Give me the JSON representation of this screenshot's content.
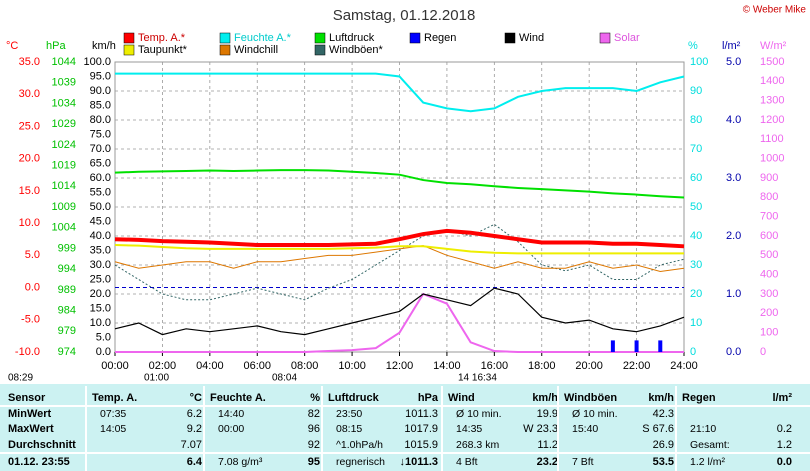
{
  "chart_data": {
    "type": "line",
    "title": "Samstag, 01.12.2018",
    "copyright": "© Weber Mike",
    "x": [
      0,
      1,
      2,
      3,
      4,
      5,
      6,
      7,
      8,
      9,
      10,
      11,
      12,
      13,
      14,
      15,
      16,
      17,
      18,
      19,
      20,
      21,
      22,
      23,
      24
    ],
    "xlim": [
      0,
      24
    ],
    "xticks": [
      {
        "value": 0,
        "label": "00:00"
      },
      {
        "value": 2,
        "label": "02:00"
      },
      {
        "value": 4,
        "label": "04:00"
      },
      {
        "value": 6,
        "label": "06:00"
      },
      {
        "value": 8,
        "label": "08:00"
      },
      {
        "value": 10,
        "label": "10:00"
      },
      {
        "value": 12,
        "label": "12:00"
      },
      {
        "value": 14,
        "label": "14:00"
      },
      {
        "value": 16,
        "label": "16:00"
      },
      {
        "value": 18,
        "label": "18:00"
      },
      {
        "value": 20,
        "label": "20:00"
      },
      {
        "value": 22,
        "label": "22:00"
      },
      {
        "value": 24,
        "label": "24:00"
      }
    ],
    "grid": true,
    "axes": {
      "temp": {
        "label": "°C",
        "color": "#ff0000",
        "lim": [
          -10,
          35
        ],
        "ticks": [
          {
            "value": -10,
            "label": "-10.0"
          },
          {
            "value": -5,
            "label": "-5.0"
          },
          {
            "value": 0,
            "label": "0.0"
          },
          {
            "value": 5,
            "label": "5.0"
          },
          {
            "value": 10,
            "label": "10.0"
          },
          {
            "value": 15,
            "label": "15.0"
          },
          {
            "value": 20,
            "label": "20.0"
          },
          {
            "value": 25,
            "label": "25.0"
          },
          {
            "value": 30,
            "label": "30.0"
          },
          {
            "value": 35,
            "label": "35.0"
          }
        ]
      },
      "hpa": {
        "label": "hPa",
        "color": "#00c000",
        "lim": [
          974,
          1044
        ],
        "ticks": [
          974,
          979,
          984,
          989,
          994,
          999,
          1004,
          1009,
          1014,
          1019,
          1024,
          1029,
          1034,
          1039,
          1044
        ]
      },
      "kmh": {
        "label": "km/h",
        "color": "#000000",
        "lim": [
          0,
          100
        ],
        "ticks": [
          {
            "value": 0,
            "label": "0.0"
          },
          {
            "value": 5,
            "label": "5.0"
          },
          {
            "value": 10,
            "label": "10.0"
          },
          {
            "value": 15,
            "label": "15.0"
          },
          {
            "value": 20,
            "label": "20.0"
          },
          {
            "value": 25,
            "label": "25.0"
          },
          {
            "value": 30,
            "label": "30.0"
          },
          {
            "value": 35,
            "label": "35.0"
          },
          {
            "value": 40,
            "label": "40.0"
          },
          {
            "value": 45,
            "label": "45.0"
          },
          {
            "value": 50,
            "label": "50.0"
          },
          {
            "value": 55,
            "label": "55.0"
          },
          {
            "value": 60,
            "label": "60.0"
          },
          {
            "value": 65,
            "label": "65.0"
          },
          {
            "value": 70,
            "label": "70.0"
          },
          {
            "value": 75,
            "label": "75.0"
          },
          {
            "value": 80,
            "label": "80.0"
          },
          {
            "value": 85,
            "label": "85.0"
          },
          {
            "value": 90,
            "label": "90.0"
          },
          {
            "value": 95,
            "label": "95.0"
          },
          {
            "value": 100,
            "label": "100.0"
          }
        ]
      },
      "pct": {
        "label": "%",
        "color": "#00dddd",
        "lim": [
          0,
          100
        ],
        "ticks": [
          0,
          10,
          20,
          30,
          40,
          50,
          60,
          70,
          80,
          90,
          100
        ]
      },
      "rain": {
        "label": "l/m²",
        "color": "#0000aa",
        "lim": [
          0,
          5
        ],
        "ticks": [
          {
            "value": 0,
            "label": "0.0"
          },
          {
            "value": 1,
            "label": "1.0"
          },
          {
            "value": 2,
            "label": "2.0"
          },
          {
            "value": 3,
            "label": "3.0"
          },
          {
            "value": 4,
            "label": "4.0"
          },
          {
            "value": 5,
            "label": "5.0"
          }
        ]
      },
      "solar": {
        "label": "W/m²",
        "color": "#ee66ee",
        "lim": [
          0,
          1500
        ],
        "ticks": [
          0,
          100,
          200,
          300,
          400,
          500,
          600,
          700,
          800,
          900,
          1000,
          1100,
          1200,
          1300,
          1400,
          1500
        ]
      }
    },
    "series": [
      {
        "name": "Temp. A.*",
        "color": "#ff0000",
        "axis": "temp",
        "width": 4,
        "values": [
          7.5,
          7.4,
          7.2,
          7.1,
          7.0,
          6.8,
          6.6,
          6.6,
          6.6,
          6.6,
          6.7,
          6.8,
          7.5,
          8.3,
          8.8,
          8.5,
          8.0,
          7.5,
          7.0,
          7.0,
          7.0,
          6.8,
          6.8,
          6.6,
          6.4
        ]
      },
      {
        "name": "Feuchte A.*",
        "color": "#00eeee",
        "axis": "pct",
        "width": 2,
        "values": [
          96,
          96,
          96,
          96,
          96,
          96,
          96,
          96,
          96,
          96,
          96,
          96,
          95,
          86,
          84,
          83,
          84,
          88,
          90,
          91,
          91,
          91,
          90,
          93,
          95
        ]
      },
      {
        "name": "Luftdruck",
        "color": "#00e000",
        "axis": "hpa",
        "width": 2,
        "values": [
          1017.3,
          1017.5,
          1017.6,
          1017.7,
          1017.8,
          1017.7,
          1017.8,
          1017.9,
          1017.9,
          1017.8,
          1017.5,
          1017.2,
          1016.8,
          1015.5,
          1014.8,
          1014.5,
          1014.0,
          1013.6,
          1013.3,
          1013.0,
          1012.7,
          1012.3,
          1012.0,
          1011.6,
          1011.3
        ]
      },
      {
        "name": "Regen",
        "color": "#0000ff",
        "axis": "rain",
        "bars": true,
        "values": [
          0,
          0,
          0,
          0,
          0,
          0,
          0,
          0,
          0,
          0,
          0,
          0,
          0,
          0,
          0,
          0,
          0,
          0,
          0,
          0,
          0,
          0.2,
          0.2,
          0.2,
          0
        ]
      },
      {
        "name": "Wind",
        "color": "#000000",
        "axis": "kmh",
        "width": 1.2,
        "values": [
          8,
          10,
          6,
          8,
          7,
          8,
          9,
          7,
          6,
          8,
          10,
          12,
          14,
          20,
          18,
          16,
          22,
          20,
          12,
          10,
          11,
          8,
          7,
          9,
          12
        ]
      },
      {
        "name": "Solar",
        "color": "#ee66ee",
        "axis": "solar",
        "width": 2,
        "values": [
          0,
          0,
          0,
          0,
          0,
          0,
          0,
          0,
          0,
          5,
          10,
          20,
          100,
          300,
          250,
          50,
          5,
          0,
          0,
          0,
          0,
          0,
          0,
          0,
          0
        ]
      },
      {
        "name": "Taupunkt*",
        "color": "#eeee00",
        "axis": "temp",
        "width": 2,
        "values": [
          6.6,
          6.5,
          6.3,
          6.1,
          6.0,
          6.0,
          6.0,
          6.0,
          6.0,
          6.0,
          6.1,
          6.2,
          6.4,
          6.4,
          6.0,
          5.6,
          5.4,
          5.3,
          5.3,
          5.3,
          5.3,
          5.3,
          5.3,
          5.3,
          5.3
        ]
      },
      {
        "name": "Windchill",
        "color": "#dd7700",
        "axis": "temp",
        "width": 1,
        "values": [
          4,
          3,
          3.5,
          4,
          4,
          3,
          4,
          4,
          4.5,
          5,
          5,
          5.5,
          6,
          6.5,
          5,
          4,
          3,
          4,
          3,
          3,
          4,
          3,
          3.5,
          2.5,
          3
        ]
      },
      {
        "name": "Windböen*",
        "color": "#336666",
        "axis": "kmh",
        "width": 1,
        "dash": true,
        "values": [
          30,
          25,
          20,
          18,
          18,
          20,
          22,
          20,
          18,
          22,
          25,
          30,
          35,
          40,
          42,
          40,
          44,
          38,
          30,
          28,
          30,
          25,
          25,
          30,
          32
        ]
      }
    ],
    "sun_marks": [
      "08:29",
      "01:00",
      "08:04",
      "14 16:34"
    ]
  },
  "table": {
    "sensor": {
      "header": "Sensor",
      "rows": [
        "MinWert",
        "MaxWert",
        "Durchschnitt",
        "01.12. 23:55"
      ]
    },
    "groups": [
      {
        "header": [
          "Temp. A.",
          "°C"
        ],
        "rows": [
          [
            "07:35",
            "6.2"
          ],
          [
            "14:05",
            "9.2"
          ],
          [
            null,
            "7.07"
          ],
          [
            null,
            "6.4"
          ]
        ]
      },
      {
        "header": [
          "Feuchte A.",
          "%"
        ],
        "rows": [
          [
            "14:40",
            "82"
          ],
          [
            "00:00",
            "96"
          ],
          [
            null,
            "92"
          ],
          [
            "7.08 g/m³",
            "95"
          ]
        ]
      },
      {
        "header": [
          "Luftdruck",
          "hPa"
        ],
        "rows": [
          [
            "23:50",
            "1011.3"
          ],
          [
            "08:15",
            "1017.9"
          ],
          [
            "^1.0hPa/h",
            "1015.9"
          ],
          [
            "regnerisch",
            "↓1011.3"
          ]
        ]
      },
      {
        "header": [
          "Wind",
          "km/h"
        ],
        "rows": [
          [
            "Ø 10 min.",
            "19.9"
          ],
          [
            "14:35",
            "W 23.3"
          ],
          [
            "268.3 km",
            "11.2"
          ],
          [
            "4 Bft",
            "23.2"
          ]
        ]
      },
      {
        "header": [
          "Windböen",
          "km/h"
        ],
        "rows": [
          [
            "Ø 10 min.",
            "42.3"
          ],
          [
            "15:40",
            "S 67.6"
          ],
          [
            null,
            "26.9"
          ],
          [
            "7 Bft",
            "53.5"
          ]
        ]
      },
      {
        "header": [
          "Regen",
          "l/m²"
        ],
        "rows": [
          [],
          [
            "21:10",
            "0.2"
          ],
          [
            "Gesamt:",
            "1.2"
          ],
          [
            "1.2 l/m²",
            "0.0"
          ]
        ]
      }
    ]
  }
}
